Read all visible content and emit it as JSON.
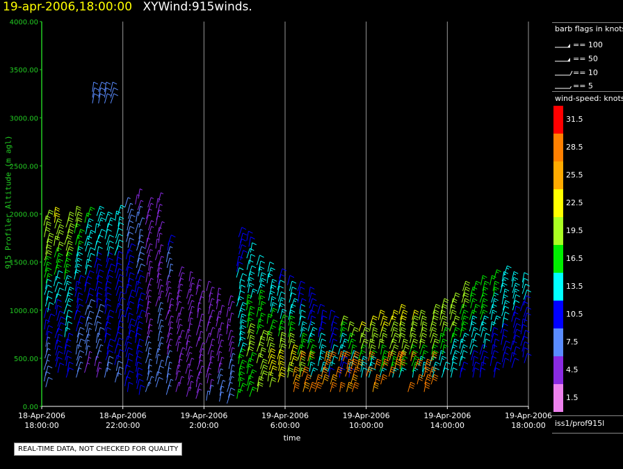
{
  "header": {
    "date_time": "19-apr-2006,18:00:00",
    "product": "XYWind:915winds."
  },
  "chart_data": {
    "type": "scatter",
    "subtype": "wind-barb time-height plot",
    "xlabel": "time",
    "ylabel": "915 Profiler Altitude (m agl)",
    "ylim": [
      0,
      4000
    ],
    "yticks": [
      "0.00",
      "500.00",
      "1000.00",
      "1500.00",
      "2000.00",
      "2500.00",
      "3000.00",
      "3500.00",
      "4000.00"
    ],
    "xticks": [
      {
        "date": "18-Apr-2006",
        "time": "18:00:00"
      },
      {
        "date": "18-Apr-2006",
        "time": "22:00:00"
      },
      {
        "date": "19-Apr-2006",
        "time": "2:00:00"
      },
      {
        "date": "19-Apr-2006",
        "time": "6:00:00"
      },
      {
        "date": "19-Apr-2006",
        "time": "10:00:00"
      },
      {
        "date": "19-Apr-2006",
        "time": "14:00:00"
      },
      {
        "date": "19-Apr-2006",
        "time": "18:00:00"
      }
    ],
    "xlim_hours": [
      0,
      24
    ],
    "grid": "vertical lines at every 2 hours",
    "columns": [
      {
        "t": 0.2,
        "top": 1950,
        "speed": [
          8,
          7,
          10,
          12,
          16,
          19,
          20
        ],
        "bottom": 200
      },
      {
        "t": 0.7,
        "top": 2000,
        "speed": [
          10,
          10,
          10,
          12,
          16,
          20,
          22
        ],
        "bottom": 350
      },
      {
        "t": 1.2,
        "top": 1950,
        "speed": [
          10,
          11,
          12,
          13,
          16,
          19,
          20
        ],
        "bottom": 300
      },
      {
        "t": 1.7,
        "top": 2000,
        "speed": [
          6,
          8,
          10,
          11,
          13,
          16,
          18
        ],
        "bottom": 300
      },
      {
        "t": 2.2,
        "top": 2000,
        "speed": [
          5,
          6,
          8,
          10,
          12,
          13,
          16
        ],
        "bottom": 350
      },
      {
        "t": 2.7,
        "top": 1980,
        "speed": [
          5,
          6,
          8,
          10,
          10,
          12,
          14
        ],
        "bottom": 300
      },
      {
        "t": 3.2,
        "top": 1950,
        "speed": [
          8,
          9,
          10,
          10,
          10,
          12,
          13
        ],
        "bottom": 300
      },
      {
        "t": 3.7,
        "top": 2000,
        "speed": [
          8,
          9,
          10,
          10,
          11,
          12,
          13
        ],
        "bottom": 250
      },
      {
        "t": 4.2,
        "top": 2100,
        "speed": [
          9,
          10,
          10,
          10,
          10,
          8,
          7
        ],
        "bottom": 150
      },
      {
        "t": 4.7,
        "top": 2200,
        "speed": [
          10,
          10,
          10,
          10,
          8,
          6,
          5
        ],
        "bottom": 120
      },
      {
        "t": 5.2,
        "top": 2100,
        "speed": [
          7,
          6,
          5,
          5,
          5,
          5,
          5
        ],
        "bottom": 150
      },
      {
        "t": 5.7,
        "top": 2150,
        "speed": [
          8,
          7,
          6,
          5,
          5,
          5,
          5
        ],
        "bottom": 200
      },
      {
        "t": 6.2,
        "top": 1700,
        "speed": [
          6,
          6,
          5,
          5,
          5,
          7,
          10
        ],
        "bottom": 120
      },
      {
        "t": 6.7,
        "top": 1400,
        "speed": [
          5,
          5,
          5,
          5,
          5,
          5,
          5
        ],
        "bottom": 150
      },
      {
        "t": 7.2,
        "top": 1300,
        "speed": [
          5,
          5,
          4,
          4,
          4,
          5,
          5
        ],
        "bottom": 100
      },
      {
        "t": 7.7,
        "top": 1250,
        "speed": [
          5,
          5,
          4,
          4,
          4,
          4,
          4
        ],
        "bottom": 80
      },
      {
        "t": 8.2,
        "top": 1200,
        "speed": [
          6,
          5,
          5,
          4,
          4,
          4,
          4
        ],
        "bottom": 60
      },
      {
        "t": 8.7,
        "top": 1150,
        "speed": [
          7,
          6,
          5,
          5,
          4,
          4,
          4
        ],
        "bottom": 50
      },
      {
        "t": 9.2,
        "top": 1100,
        "speed": [
          8,
          7,
          6,
          5,
          5,
          4,
          4
        ],
        "bottom": 30
      },
      {
        "t": 9.7,
        "top": 1800,
        "speed": [
          16,
          16,
          14,
          13,
          12,
          10,
          10
        ],
        "bottom": 80
      },
      {
        "t": 10.2,
        "top": 1750,
        "speed": [
          16,
          17,
          18,
          15,
          13,
          12,
          11
        ],
        "bottom": 100
      },
      {
        "t": 10.7,
        "top": 1500,
        "speed": [
          18,
          20,
          20,
          17,
          15,
          13,
          12
        ],
        "bottom": 150
      },
      {
        "t": 11.2,
        "top": 1450,
        "speed": [
          20,
          22,
          20,
          17,
          14,
          13,
          12
        ],
        "bottom": 200
      },
      {
        "t": 11.7,
        "top": 1350,
        "speed": [
          21,
          22,
          20,
          16,
          14,
          12,
          11
        ],
        "bottom": 250
      },
      {
        "t": 12.2,
        "top": 1300,
        "speed": [
          19,
          21,
          19,
          15,
          13,
          12,
          11
        ],
        "bottom": 300
      },
      {
        "t": 12.7,
        "top": 1200,
        "speed": [
          18,
          20,
          16,
          14,
          12,
          11,
          10
        ],
        "bottom": 300
      },
      {
        "t": 13.2,
        "top": 1150,
        "speed": [
          14,
          17,
          15,
          13,
          11,
          10,
          10
        ],
        "bottom": 300
      },
      {
        "t": 13.7,
        "top": 1000,
        "speed": [
          12,
          14,
          13,
          12,
          11,
          10,
          10
        ],
        "bottom": 300
      },
      {
        "t": 14.2,
        "top": 900,
        "speed": [
          10,
          12,
          12,
          11,
          10,
          10,
          10
        ],
        "bottom": 300
      },
      {
        "t": 14.7,
        "top": 850,
        "speed": [
          10,
          11,
          12,
          13,
          14,
          16,
          18
        ],
        "bottom": 300
      },
      {
        "t": 15.2,
        "top": 800,
        "speed": [
          11,
          12,
          13,
          15,
          17,
          19,
          20
        ],
        "bottom": 300
      },
      {
        "t": 15.7,
        "top": 800,
        "speed": [
          12,
          13,
          15,
          17,
          18,
          20,
          21
        ],
        "bottom": 300
      },
      {
        "t": 16.2,
        "top": 850,
        "speed": [
          12,
          14,
          16,
          18,
          19,
          20,
          21
        ],
        "bottom": 300
      },
      {
        "t": 16.7,
        "top": 900,
        "speed": [
          13,
          15,
          17,
          19,
          20,
          21,
          21
        ],
        "bottom": 300
      },
      {
        "t": 17.2,
        "top": 950,
        "speed": [
          14,
          16,
          18,
          19,
          20,
          21,
          21
        ],
        "bottom": 300
      },
      {
        "t": 17.7,
        "top": 1000,
        "speed": [
          14,
          16,
          18,
          19,
          20,
          21,
          21
        ],
        "bottom": 300
      },
      {
        "t": 18.2,
        "top": 900,
        "speed": [
          13,
          15,
          17,
          19,
          20,
          20,
          21
        ],
        "bottom": 300
      },
      {
        "t": 18.7,
        "top": 950,
        "speed": [
          12,
          14,
          16,
          18,
          19,
          20,
          20
        ],
        "bottom": 300
      },
      {
        "t": 19.2,
        "top": 1000,
        "speed": [
          12,
          14,
          16,
          18,
          19,
          20,
          20
        ],
        "bottom": 300
      },
      {
        "t": 19.7,
        "top": 1050,
        "speed": [
          12,
          13,
          15,
          17,
          18,
          19,
          20
        ],
        "bottom": 300
      },
      {
        "t": 20.2,
        "top": 1100,
        "speed": [
          12,
          13,
          14,
          16,
          18,
          19,
          19
        ],
        "bottom": 300
      },
      {
        "t": 20.7,
        "top": 1200,
        "speed": [
          11,
          12,
          13,
          15,
          17,
          18,
          18
        ],
        "bottom": 300
      },
      {
        "t": 21.2,
        "top": 1250,
        "speed": [
          10,
          11,
          12,
          14,
          16,
          17,
          17
        ],
        "bottom": 300
      },
      {
        "t": 21.7,
        "top": 1300,
        "speed": [
          10,
          10,
          12,
          13,
          15,
          16,
          16
        ],
        "bottom": 300
      },
      {
        "t": 22.2,
        "top": 1350,
        "speed": [
          10,
          10,
          11,
          13,
          14,
          15,
          15
        ],
        "bottom": 300
      },
      {
        "t": 22.7,
        "top": 1400,
        "speed": [
          10,
          10,
          11,
          12,
          13,
          14,
          14
        ],
        "bottom": 400
      },
      {
        "t": 23.2,
        "top": 1350,
        "speed": [
          10,
          10,
          10,
          11,
          12,
          13,
          13
        ],
        "bottom": 400
      },
      {
        "t": 23.7,
        "top": 1300,
        "speed": [
          10,
          10,
          10,
          10,
          11,
          12,
          12
        ],
        "bottom": 450
      }
    ],
    "low_level_jet": {
      "t_start": 12.5,
      "t_end": 19.5,
      "alt_min": 150,
      "alt_max": 500,
      "speed": 30
    },
    "upper_cluster": {
      "t_start": 2.5,
      "t_end": 3.5,
      "alt_min": 3150,
      "alt_max": 3300,
      "speed": 8
    }
  },
  "barb_legend": {
    "title": "barb flags in knots",
    "items": [
      {
        "label": "== 100"
      },
      {
        "label": "== 50"
      },
      {
        "label": "== 10"
      },
      {
        "label": "== 5"
      }
    ]
  },
  "speed_legend": {
    "title": "wind-speed: knots",
    "bins": [
      {
        "label": "31.5",
        "color": "#ff0000"
      },
      {
        "label": "28.5",
        "color": "#ff8000"
      },
      {
        "label": "25.5",
        "color": "#ffaa00"
      },
      {
        "label": "22.5",
        "color": "#ffff00"
      },
      {
        "label": "19.5",
        "color": "#aaff22"
      },
      {
        "label": "16.5",
        "color": "#00ee00"
      },
      {
        "label": "13.5",
        "color": "#00ffff"
      },
      {
        "label": "10.5",
        "color": "#0000ff"
      },
      {
        "label": "7.5",
        "color": "#5a8cff"
      },
      {
        "label": "4.5",
        "color": "#8a2be2"
      },
      {
        "label": "1.5",
        "color": "#ee82ee"
      }
    ]
  },
  "footer": {
    "station_id": "iss1/prof915l",
    "qc_notice": "REAL-TIME DATA, NOT CHECKED FOR QUALITY"
  },
  "colors": {
    "axis_green": "#22cc22",
    "grid": "#cccccc",
    "background": "#000000"
  }
}
